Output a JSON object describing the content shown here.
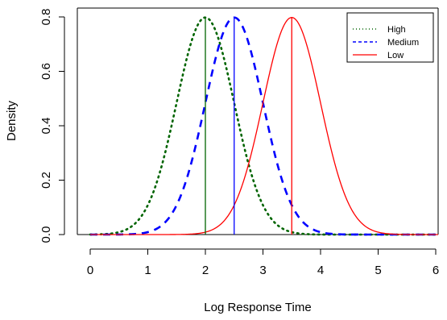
{
  "chart_data": {
    "type": "line",
    "title": "",
    "xlabel": "Log Response Time",
    "ylabel": "Density",
    "xlim": [
      0,
      6
    ],
    "ylim": [
      0,
      0.8
    ],
    "x_ticks": [
      "0",
      "1",
      "2",
      "3",
      "4",
      "5",
      "6"
    ],
    "y_ticks": [
      "0.0",
      "0.2",
      "0.4",
      "0.6",
      "0.8"
    ],
    "series": [
      {
        "name": "High",
        "mean": 2.0,
        "sd": 0.5,
        "peak": 0.7979,
        "color": "#006400",
        "line_style": "dotted"
      },
      {
        "name": "Medium",
        "mean": 2.5,
        "sd": 0.5,
        "peak": 0.7979,
        "color": "#0000ff",
        "line_style": "dashed"
      },
      {
        "name": "Low",
        "mean": 3.5,
        "sd": 0.5,
        "peak": 0.7979,
        "color": "#ff0000",
        "line_style": "solid"
      }
    ],
    "vertical_lines": [
      {
        "x": 2.0,
        "color": "#006400"
      },
      {
        "x": 2.5,
        "color": "#0000ff"
      },
      {
        "x": 3.5,
        "color": "#ff0000"
      }
    ],
    "legend_position": "top-right",
    "grid": false
  }
}
